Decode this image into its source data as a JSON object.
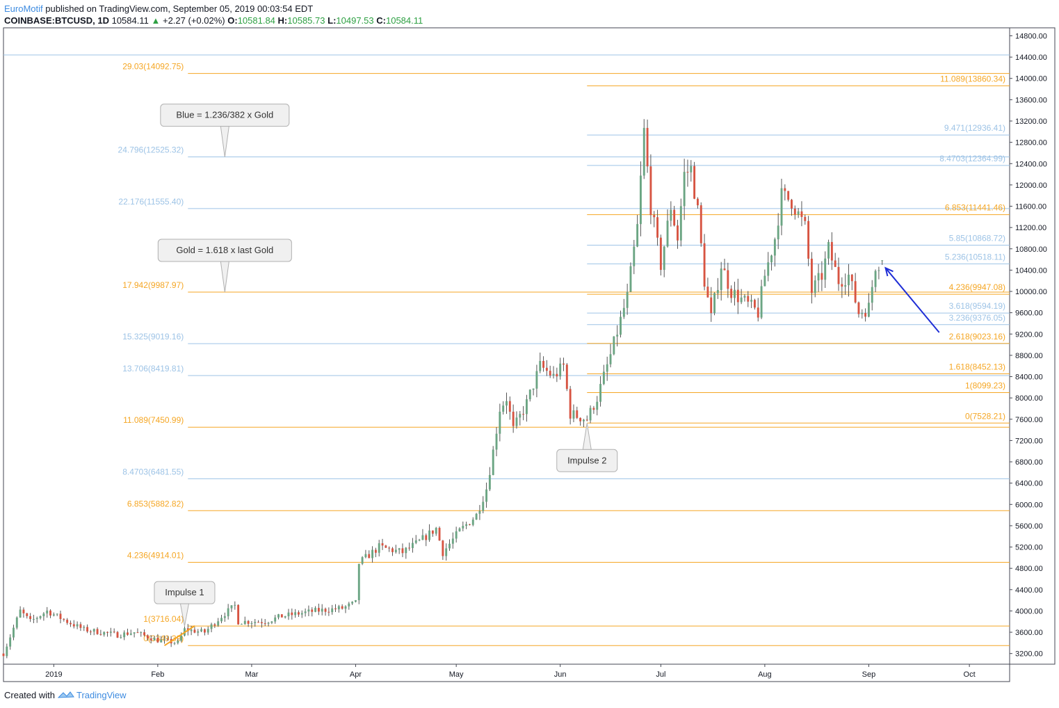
{
  "header": {
    "brand": "EuroMotif",
    "published": " published on TradingView.com, September 05, 2019 00:03:54 EDT",
    "symbol": "COINBASE:BTCUSD, 1D",
    "last": "10584.11",
    "change": "+2.27 (+0.02%)",
    "o_label": "O:",
    "o_value": "10581.84",
    "h_label": "H:",
    "h_value": "10585.73",
    "l_label": "L:",
    "l_value": "10497.53",
    "c_label": "C:",
    "c_value": "10584.11"
  },
  "footer": {
    "created_with": "Created with",
    "brand": "TradingView"
  },
  "colors": {
    "up": "#6ba583",
    "down": "#d75442",
    "gold": "#f5a623",
    "blue": "#9dc3e6",
    "arrow": "#1f2ed6"
  },
  "chart_data": {
    "type": "candlestick",
    "ylim": [
      3000,
      14950
    ],
    "y_ticks": [
      "3200.00",
      "3600.00",
      "4000.00",
      "4400.00",
      "4800.00",
      "5200.00",
      "5600.00",
      "6000.00",
      "6400.00",
      "6800.00",
      "7200.00",
      "7600.00",
      "8000.00",
      "8400.00",
      "8800.00",
      "9200.00",
      "9600.00",
      "10000.00",
      "10400.00",
      "10800.00",
      "11200.00",
      "11600.00",
      "12000.00",
      "12400.00",
      "12800.00",
      "13200.00",
      "13600.00",
      "14000.00",
      "14400.00",
      "14800.00"
    ],
    "x_ticks": [
      {
        "label": "2019",
        "date": "2019-01-01"
      },
      {
        "label": "Feb",
        "date": "2019-02-01"
      },
      {
        "label": "Mar",
        "date": "2019-03-01"
      },
      {
        "label": "Apr",
        "date": "2019-04-01"
      },
      {
        "label": "May",
        "date": "2019-05-01"
      },
      {
        "label": "Jun",
        "date": "2019-06-01"
      },
      {
        "label": "Jul",
        "date": "2019-07-01"
      },
      {
        "label": "Aug",
        "date": "2019-08-01"
      },
      {
        "label": "Sep",
        "date": "2019-09-01"
      },
      {
        "label": "Oct",
        "date": "2019-10-01"
      }
    ],
    "x_range": [
      "2018-12-17",
      "2019-10-13"
    ],
    "price_path": [
      [
        "2018-12-17",
        3200
      ],
      [
        "2018-12-22",
        4000
      ],
      [
        "2018-12-25",
        3800
      ],
      [
        "2018-12-30",
        4000
      ],
      [
        "2019-01-05",
        3800
      ],
      [
        "2019-01-10",
        3650
      ],
      [
        "2019-01-15",
        3600
      ],
      [
        "2019-01-20",
        3550
      ],
      [
        "2019-01-25",
        3600
      ],
      [
        "2019-02-01",
        3450
      ],
      [
        "2019-02-07",
        3400
      ],
      [
        "2019-02-09",
        3650
      ],
      [
        "2019-02-15",
        3600
      ],
      [
        "2019-02-20",
        3900
      ],
      [
        "2019-02-24",
        4100
      ],
      [
        "2019-02-25",
        3800
      ],
      [
        "2019-03-05",
        3800
      ],
      [
        "2019-03-10",
        3900
      ],
      [
        "2019-03-20",
        4000
      ],
      [
        "2019-03-28",
        4050
      ],
      [
        "2019-04-01",
        4150
      ],
      [
        "2019-04-02",
        4900
      ],
      [
        "2019-04-08",
        5200
      ],
      [
        "2019-04-15",
        5100
      ],
      [
        "2019-04-20",
        5300
      ],
      [
        "2019-04-25",
        5550
      ],
      [
        "2019-04-27",
        5100
      ],
      [
        "2019-05-02",
        5500
      ],
      [
        "2019-05-07",
        5800
      ],
      [
        "2019-05-10",
        6300
      ],
      [
        "2019-05-12",
        7000
      ],
      [
        "2019-05-14",
        7800
      ],
      [
        "2019-05-16",
        8000
      ],
      [
        "2019-05-18",
        7400
      ],
      [
        "2019-05-22",
        7900
      ],
      [
        "2019-05-26",
        8600
      ],
      [
        "2019-05-30",
        8400
      ],
      [
        "2019-06-02",
        8600
      ],
      [
        "2019-06-04",
        7700
      ],
      [
        "2019-06-09",
        7600
      ],
      [
        "2019-06-12",
        8000
      ],
      [
        "2019-06-16",
        8800
      ],
      [
        "2019-06-21",
        9900
      ],
      [
        "2019-06-24",
        11200
      ],
      [
        "2019-06-26",
        13000
      ],
      [
        "2019-06-28",
        11600
      ],
      [
        "2019-07-01",
        10500
      ],
      [
        "2019-07-04",
        11600
      ],
      [
        "2019-07-06",
        11000
      ],
      [
        "2019-07-08",
        12200
      ],
      [
        "2019-07-10",
        12300
      ],
      [
        "2019-07-12",
        11500
      ],
      [
        "2019-07-14",
        10200
      ],
      [
        "2019-07-16",
        9500
      ],
      [
        "2019-07-19",
        10500
      ],
      [
        "2019-07-22",
        10000
      ],
      [
        "2019-07-26",
        9800
      ],
      [
        "2019-07-30",
        9600
      ],
      [
        "2019-08-01",
        10300
      ],
      [
        "2019-08-04",
        11000
      ],
      [
        "2019-08-06",
        11800
      ],
      [
        "2019-08-09",
        11700
      ],
      [
        "2019-08-13",
        11200
      ],
      [
        "2019-08-15",
        10000
      ],
      [
        "2019-08-18",
        10300
      ],
      [
        "2019-08-20",
        10800
      ],
      [
        "2019-08-23",
        10200
      ],
      [
        "2019-08-26",
        10300
      ],
      [
        "2019-08-29",
        9600
      ],
      [
        "2019-09-01",
        9700
      ],
      [
        "2019-09-03",
        10500
      ],
      [
        "2019-09-05",
        10584
      ]
    ],
    "last_candle": {
      "date": "2019-09-05",
      "open": 10581.84,
      "high": 10585.73,
      "low": 10497.53,
      "close": 10584.11
    },
    "levels": [
      {
        "label": "29.03(14092.75)",
        "price": 14092.75,
        "color": "gold",
        "side": "left"
      },
      {
        "label": "24.796(12525.32)",
        "price": 12525.32,
        "color": "blue",
        "side": "left"
      },
      {
        "label": "22.176(11555.40)",
        "price": 11555.4,
        "color": "blue",
        "side": "left"
      },
      {
        "label": "17.942(9987.97)",
        "price": 9987.97,
        "color": "gold",
        "side": "left"
      },
      {
        "label": "15.325(9019.16)",
        "price": 9019.16,
        "color": "blue",
        "side": "left"
      },
      {
        "label": "13.706(8419.81)",
        "price": 8419.81,
        "color": "blue",
        "side": "left"
      },
      {
        "label": "11.089(7450.99)",
        "price": 7450.99,
        "color": "gold",
        "side": "left"
      },
      {
        "label": "8.4703(6481.55)",
        "price": 6481.55,
        "color": "blue",
        "side": "left"
      },
      {
        "label": "6.853(5882.82)",
        "price": 5882.82,
        "color": "gold",
        "side": "left"
      },
      {
        "label": "4.236(4914.01)",
        "price": 4914.01,
        "color": "gold",
        "side": "left"
      },
      {
        "label": "1(3716.04)",
        "price": 3716.04,
        "color": "gold",
        "side": "left"
      },
      {
        "label": "0(3349.39)",
        "price": 3349.39,
        "color": "gold",
        "side": "left"
      },
      {
        "label": "11.089(13860.34)",
        "price": 13860.34,
        "color": "gold",
        "side": "right"
      },
      {
        "label": "9.471(12936.41)",
        "price": 12936.41,
        "color": "blue",
        "side": "right"
      },
      {
        "label": "8.4703(12364.99)",
        "price": 12364.99,
        "color": "blue",
        "side": "right"
      },
      {
        "label": "6.853(11441.46)",
        "price": 11441.46,
        "color": "gold",
        "side": "right"
      },
      {
        "label": "5.85(10868.72)",
        "price": 10868.72,
        "color": "blue",
        "side": "right"
      },
      {
        "label": "5.236(10518.11)",
        "price": 10518.11,
        "color": "blue",
        "side": "right"
      },
      {
        "label": "4.236(9947.08)",
        "price": 9947.08,
        "color": "gold",
        "side": "right"
      },
      {
        "label": "3.618(9594.19)",
        "price": 9594.19,
        "color": "blue",
        "side": "right"
      },
      {
        "label": "3.236(9376.05)",
        "price": 9376.05,
        "color": "blue",
        "side": "right"
      },
      {
        "label": "2.618(9023.16)",
        "price": 9023.16,
        "color": "gold",
        "side": "right"
      },
      {
        "label": "1.618(8452.13)",
        "price": 8452.13,
        "color": "gold",
        "side": "right"
      },
      {
        "label": "1(8099.23)",
        "price": 8099.23,
        "color": "gold",
        "side": "right"
      },
      {
        "label": "0(7528.21)",
        "price": 7528.21,
        "color": "gold",
        "side": "right"
      }
    ],
    "callouts": [
      {
        "text": "Blue = 1.236/382 x Gold",
        "date": "2019-02-21",
        "price": 12525.32
      },
      {
        "text": "Gold = 1.618 x last Gold",
        "date": "2019-02-21",
        "price": 9987.97
      },
      {
        "text": "Impulse 1",
        "date": "2019-02-09",
        "price": 3716.04,
        "below": true
      },
      {
        "text": "Impulse 2",
        "date": "2019-06-09",
        "price": 7528.21,
        "below": false
      }
    ]
  }
}
